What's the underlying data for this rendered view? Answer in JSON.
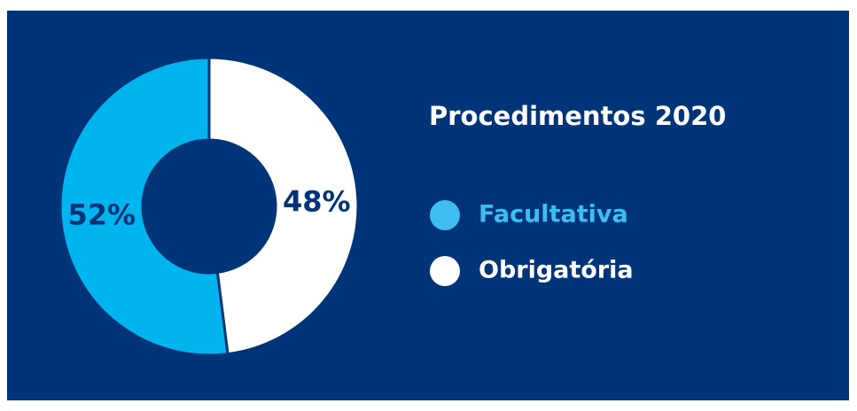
{
  "chart_data": {
    "type": "pie",
    "title": "Procedimentos 2020",
    "categories": [
      "Facultativa",
      "Obrigatória"
    ],
    "values": [
      52,
      48
    ],
    "value_labels": [
      "52%",
      "48%"
    ],
    "colors": [
      "#00b4ee",
      "#ffffff"
    ],
    "legend_colors": [
      "#3dbdf0",
      "#ffffff"
    ],
    "donut": true
  }
}
